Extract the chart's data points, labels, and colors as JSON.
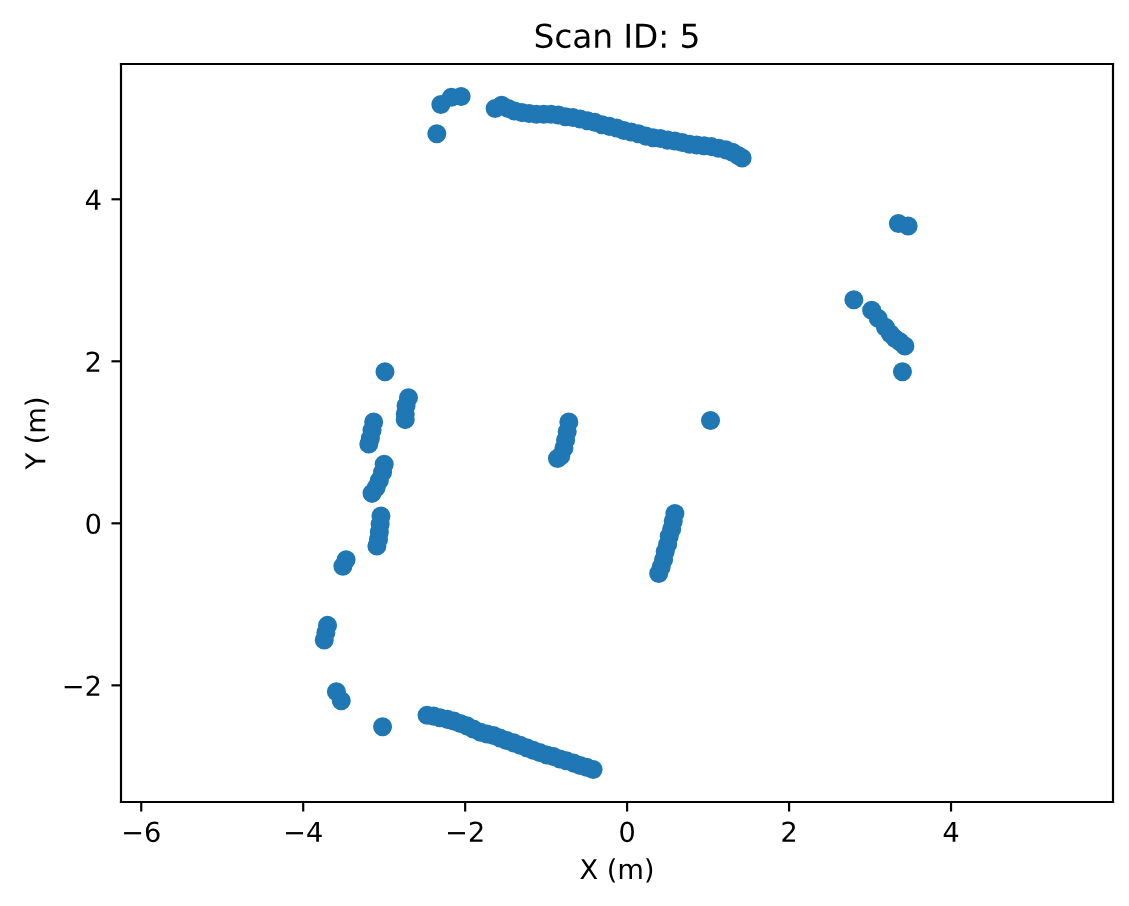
{
  "chart_data": {
    "type": "scatter",
    "title": "Scan ID: 5",
    "xlabel": "X (m)",
    "ylabel": "Y (m)",
    "xlim": [
      -6.25,
      6.0
    ],
    "ylim": [
      -3.44,
      5.67
    ],
    "xticks": [
      {
        "value": -6,
        "label": "−6"
      },
      {
        "value": -4,
        "label": "−4"
      },
      {
        "value": -2,
        "label": "−2"
      },
      0,
      2,
      4
    ],
    "yticks": [
      {
        "value": -2,
        "label": "−2"
      },
      0,
      2,
      4
    ],
    "marker": "circle",
    "series": [
      {
        "color": "#1f77b4",
        "x": [
          -2.35,
          -2.3,
          -2.17,
          -2.05,
          -1.63,
          -1.55,
          -1.47,
          -1.39,
          -1.3,
          -1.21,
          -1.12,
          -1.03,
          -0.94,
          -0.85,
          -0.76,
          -0.67,
          -0.58,
          -0.49,
          -0.4,
          -0.31,
          -0.22,
          -0.13,
          -0.04,
          0.05,
          0.14,
          0.23,
          0.32,
          0.41,
          0.5,
          0.59,
          0.68,
          0.77,
          0.86,
          0.95,
          1.04,
          1.13,
          1.22,
          1.3,
          1.37,
          1.42,
          3.35,
          3.47,
          2.8,
          3.02,
          3.1,
          3.19,
          3.25,
          3.31,
          3.37,
          3.43,
          3.4,
          1.03,
          -0.72,
          -0.74,
          -0.76,
          -0.78,
          -0.82,
          -0.86,
          0.59,
          0.57,
          0.55,
          0.52,
          0.5,
          0.47,
          0.45,
          0.42,
          0.39,
          -2.99,
          -2.7,
          -2.73,
          -2.74,
          -2.74,
          -3.13,
          -3.15,
          -3.17,
          -3.19,
          -3.0,
          -3.02,
          -3.06,
          -3.1,
          -3.15,
          -3.04,
          -3.05,
          -3.06,
          -3.07,
          -3.09,
          -3.47,
          -3.51,
          -3.7,
          -3.72,
          -3.74,
          -3.59,
          -3.53,
          -3.02,
          -2.47,
          -2.39,
          -2.31,
          -2.22,
          -2.14,
          -2.06,
          -1.98,
          -1.9,
          -1.81,
          -1.73,
          -1.65,
          -1.57,
          -1.49,
          -1.4,
          -1.32,
          -1.24,
          -1.16,
          -1.08,
          -0.99,
          -0.91,
          -0.83,
          -0.75,
          -0.66,
          -0.58,
          -0.5,
          -0.42
        ],
        "values": [
          4.81,
          5.17,
          5.26,
          5.27,
          5.12,
          5.16,
          5.12,
          5.09,
          5.07,
          5.06,
          5.05,
          5.05,
          5.05,
          5.04,
          5.02,
          5.01,
          4.99,
          4.97,
          4.95,
          4.92,
          4.9,
          4.88,
          4.85,
          4.83,
          4.81,
          4.78,
          4.76,
          4.75,
          4.73,
          4.72,
          4.7,
          4.68,
          4.67,
          4.66,
          4.65,
          4.63,
          4.61,
          4.58,
          4.54,
          4.51,
          3.7,
          3.67,
          2.76,
          2.63,
          2.53,
          2.42,
          2.34,
          2.28,
          2.24,
          2.19,
          1.87,
          1.27,
          1.25,
          1.13,
          1.03,
          0.93,
          0.83,
          0.8,
          0.12,
          0.03,
          -0.07,
          -0.16,
          -0.26,
          -0.35,
          -0.45,
          -0.54,
          -0.62,
          1.87,
          1.55,
          1.45,
          1.35,
          1.28,
          1.25,
          1.15,
          1.05,
          0.98,
          0.73,
          0.63,
          0.53,
          0.44,
          0.37,
          0.09,
          -0.01,
          -0.11,
          -0.2,
          -0.28,
          -0.45,
          -0.53,
          -1.26,
          -1.35,
          -1.44,
          -2.08,
          -2.19,
          -2.51,
          -2.37,
          -2.38,
          -2.4,
          -2.42,
          -2.44,
          -2.47,
          -2.5,
          -2.54,
          -2.58,
          -2.6,
          -2.62,
          -2.65,
          -2.68,
          -2.71,
          -2.74,
          -2.77,
          -2.8,
          -2.83,
          -2.86,
          -2.88,
          -2.91,
          -2.93,
          -2.96,
          -2.99,
          -3.01,
          -3.04
        ]
      }
    ]
  }
}
